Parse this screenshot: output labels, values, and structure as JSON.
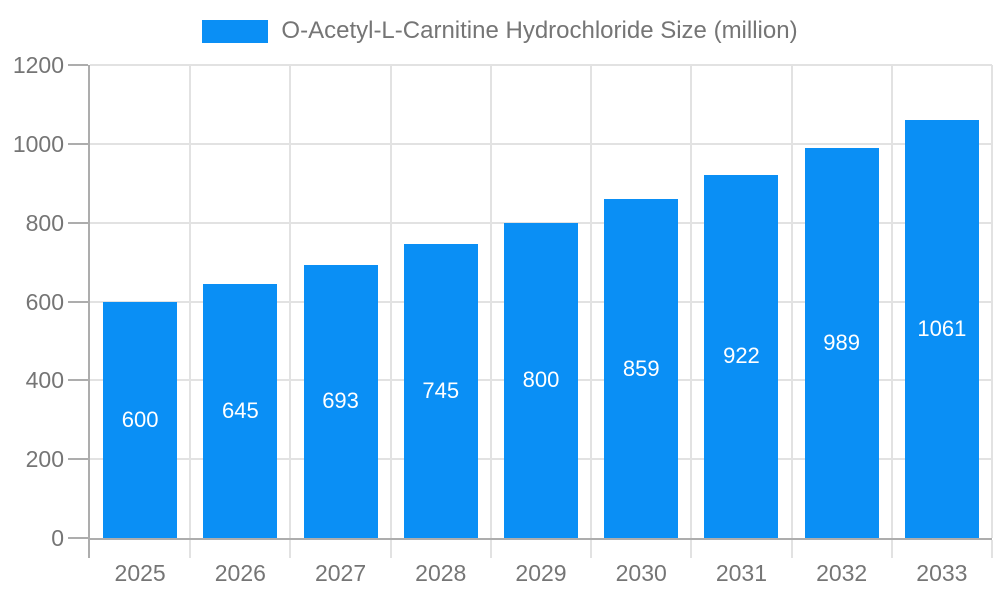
{
  "legend": {
    "label": "O-Acetyl-L-Carnitine Hydrochloride Size (million)"
  },
  "chart_data": {
    "type": "bar",
    "title": "O-Acetyl-L-Carnitine Hydrochloride Size (million)",
    "categories": [
      "2025",
      "2026",
      "2027",
      "2028",
      "2029",
      "2030",
      "2031",
      "2032",
      "2033"
    ],
    "values": [
      600,
      645,
      693,
      745,
      800,
      859,
      922,
      989,
      1061
    ],
    "xlabel": "",
    "ylabel": "",
    "ylim": [
      0,
      1200
    ],
    "ytick_step": 200,
    "ytick_labels": [
      "0",
      "200",
      "400",
      "600",
      "800",
      "1000",
      "1200"
    ],
    "grid": true,
    "legend_position": "top-center",
    "value_label_position": "inside-center"
  },
  "colors": {
    "bar": "#0a8ff5",
    "axis": "#adadad",
    "grid": "#e2e2e2",
    "text": "#757575",
    "value_label": "#ffffff",
    "background": "#ffffff"
  }
}
